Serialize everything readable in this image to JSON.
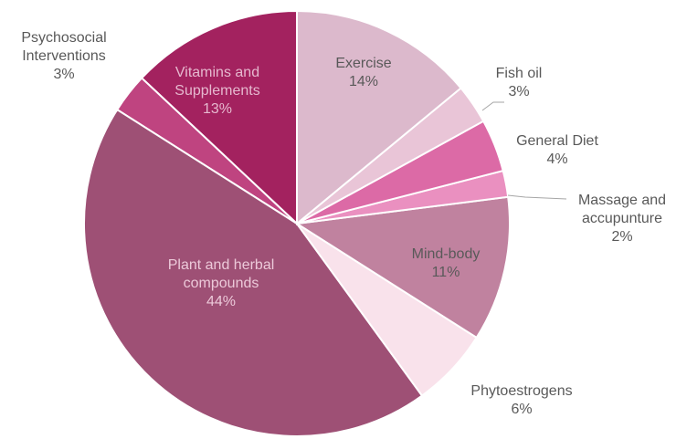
{
  "chart_data": {
    "type": "pie",
    "categories": [
      "Exercise",
      "Fish oil",
      "General Diet",
      "Massage and accupunture",
      "Mind-body",
      "Phytoestrogens",
      "Plant and herbal compounds",
      "Psychosocial Interventions",
      "Vitamins and Supplements"
    ],
    "values": [
      14,
      3,
      4,
      2,
      11,
      6,
      44,
      3,
      13
    ],
    "value_labels": [
      "14%",
      "3%",
      "4%",
      "2%",
      "11%",
      "6%",
      "44%",
      "3%",
      "13%"
    ],
    "colors": [
      "#dcb9cc",
      "#e9c5d7",
      "#dc6aa6",
      "#ea90c0",
      "#c0829f",
      "#f9e2eb",
      "#9e5075",
      "#bf4480",
      "#a3225f"
    ]
  }
}
